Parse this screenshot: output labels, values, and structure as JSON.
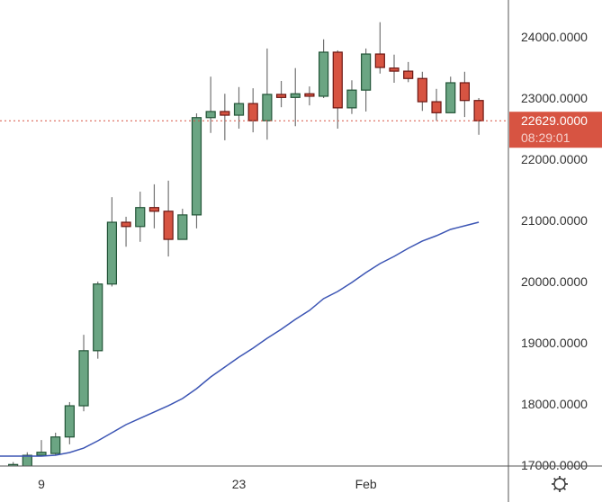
{
  "chart_data": {
    "type": "candlestick",
    "title": "",
    "xlabel": "",
    "ylabel": "",
    "x_tick_labels": [
      {
        "label": "9",
        "date": "Jan 9"
      },
      {
        "label": "23",
        "date": "Jan 23"
      },
      {
        "label": "Feb",
        "date": "Feb 1"
      }
    ],
    "y_tick_labels": [
      "24000.0000",
      "23000.0000",
      "22000.0000",
      "21000.0000",
      "20000.0000",
      "19000.0000",
      "18000.0000",
      "17000.0000"
    ],
    "y_ticks": [
      24000,
      23000,
      22000,
      21000,
      20000,
      19000,
      18000,
      17000
    ],
    "ylim": [
      16990,
      24600
    ],
    "grid": false,
    "dates": [
      "Jan 7",
      "Jan 8",
      "Jan 9",
      "Jan 10",
      "Jan 11",
      "Jan 12",
      "Jan 13",
      "Jan 14",
      "Jan 15",
      "Jan 16",
      "Jan 17",
      "Jan 18",
      "Jan 19",
      "Jan 20",
      "Jan 21",
      "Jan 22",
      "Jan 23",
      "Jan 24",
      "Jan 25",
      "Jan 26",
      "Jan 27",
      "Jan 28",
      "Jan 29",
      "Jan 30",
      "Jan 31",
      "Feb 1",
      "Feb 2",
      "Feb 3",
      "Feb 4",
      "Feb 5",
      "Feb 6",
      "Feb 7",
      "Feb 8",
      "Feb 9"
    ],
    "ohlc": [
      [
        16990,
        17010,
        17050,
        16950
      ],
      [
        16950,
        17160,
        17210,
        16900
      ],
      [
        17160,
        17210,
        17410,
        17150
      ],
      [
        17190,
        17460,
        17530,
        17170
      ],
      [
        17460,
        17970,
        18030,
        17340
      ],
      [
        17970,
        18870,
        19130,
        17880
      ],
      [
        18870,
        19960,
        20000,
        18740
      ],
      [
        19960,
        20970,
        21380,
        19920
      ],
      [
        20970,
        20900,
        21060,
        20570
      ],
      [
        20900,
        21210,
        21470,
        20650
      ],
      [
        21210,
        21150,
        21590,
        20870
      ],
      [
        21150,
        20690,
        21650,
        20410
      ],
      [
        20690,
        21090,
        21190,
        20690
      ],
      [
        21090,
        22680,
        22750,
        20870
      ],
      [
        22680,
        22780,
        23350,
        22430
      ],
      [
        22780,
        22720,
        23070,
        22310
      ],
      [
        22720,
        22910,
        23180,
        22500
      ],
      [
        22910,
        22630,
        23160,
        22440
      ],
      [
        22630,
        23060,
        23810,
        22320
      ],
      [
        23060,
        23010,
        23280,
        22850
      ],
      [
        23010,
        23070,
        23490,
        22540
      ],
      [
        23070,
        23030,
        23190,
        22880
      ],
      [
        23030,
        23750,
        23960,
        23000
      ],
      [
        23750,
        22840,
        23780,
        22500
      ],
      [
        22840,
        23130,
        23290,
        22740
      ],
      [
        23130,
        23720,
        23810,
        22780
      ],
      [
        23720,
        23500,
        24240,
        23400
      ],
      [
        23490,
        23440,
        23710,
        23250
      ],
      [
        23440,
        23320,
        23590,
        23260
      ],
      [
        23320,
        22940,
        23430,
        22790
      ],
      [
        22940,
        22760,
        23150,
        22630
      ],
      [
        22760,
        23250,
        23350,
        22760
      ],
      [
        23250,
        22960,
        23430,
        22690
      ],
      [
        22960,
        22629,
        23000,
        22400
      ]
    ],
    "moving_average": [
      17147,
      17147,
      17147,
      17162,
      17206,
      17279,
      17397,
      17529,
      17662,
      17765,
      17868,
      17971,
      18088,
      18250,
      18441,
      18603,
      18765,
      18912,
      19074,
      19221,
      19382,
      19529,
      19721,
      19838,
      19985,
      20147,
      20294,
      20412,
      20544,
      20662,
      20750,
      20853,
      20912,
      20971
    ],
    "ma_start_value": 17147,
    "last_price": 22629,
    "last_price_label": "22629.0000",
    "countdown": "08:29:01",
    "colors": {
      "up_fill": "#6ba583",
      "up_border": "#225437",
      "down_fill": "#d75442",
      "down_border": "#6b1713",
      "wick": "#737373",
      "ma_line": "#3c55b4",
      "price_line": "#d75442",
      "axis": "#555555"
    }
  },
  "toolbar": {
    "settings_icon": "gear-icon"
  }
}
